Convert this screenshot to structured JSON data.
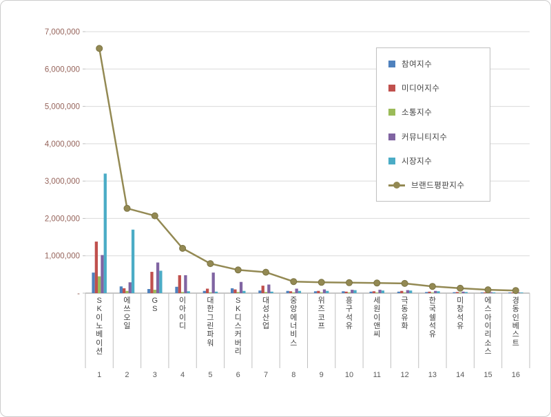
{
  "chart_data": {
    "type": "bar",
    "title": "",
    "categories": [
      "SK이노베이션",
      "에쓰오일",
      "GS",
      "이아이디",
      "대한그린파워",
      "SK디스커버리",
      "대성산업",
      "중앙에너비스",
      "위즈코프",
      "흥구석유",
      "세원이앤씨",
      "극동유화",
      "한국쉘석유",
      "미창석유",
      "에스아이리소스",
      "경동인베스트"
    ],
    "category_numbers": [
      "1",
      "2",
      "3",
      "4",
      "5",
      "6",
      "7",
      "8",
      "9",
      "10",
      "11",
      "12",
      "13",
      "14",
      "15",
      "16"
    ],
    "series": [
      {
        "name": "참여지수",
        "type": "bar",
        "color": "#4F81BD",
        "values": [
          550000,
          180000,
          110000,
          170000,
          60000,
          130000,
          70000,
          60000,
          50000,
          50000,
          40000,
          40000,
          30000,
          25000,
          15000,
          12000
        ]
      },
      {
        "name": "미디어지수",
        "type": "bar",
        "color": "#C0504D",
        "values": [
          1380000,
          130000,
          570000,
          480000,
          120000,
          100000,
          200000,
          50000,
          60000,
          40000,
          50000,
          60000,
          40000,
          30000,
          20000,
          18000
        ]
      },
      {
        "name": "소통지수",
        "type": "bar",
        "color": "#9BBB59",
        "values": [
          450000,
          60000,
          90000,
          30000,
          20000,
          30000,
          30000,
          20000,
          20000,
          20000,
          15000,
          15000,
          10000,
          8000,
          5000,
          4000
        ]
      },
      {
        "name": "커뮤니티지수",
        "type": "bar",
        "color": "#8064A2",
        "values": [
          1020000,
          290000,
          820000,
          480000,
          550000,
          300000,
          230000,
          120000,
          100000,
          90000,
          90000,
          80000,
          60000,
          40000,
          25000,
          20000
        ]
      },
      {
        "name": "시장지수",
        "type": "bar",
        "color": "#4BACC6",
        "values": [
          3200000,
          1700000,
          600000,
          50000,
          40000,
          60000,
          40000,
          60000,
          60000,
          80000,
          70000,
          70000,
          50000,
          30000,
          20000,
          16000
        ]
      },
      {
        "name": "브랜드평판지수",
        "type": "line",
        "color": "#938953",
        "values": [
          6550000,
          2270000,
          2070000,
          1200000,
          790000,
          620000,
          560000,
          310000,
          290000,
          280000,
          270000,
          260000,
          180000,
          130000,
          90000,
          70000
        ]
      }
    ],
    "ylim": [
      0,
      7000000
    ],
    "ytick_interval": 1000000,
    "ytick_labels": [
      "-",
      "1,000,000",
      "2,000,000",
      "3,000,000",
      "4,000,000",
      "5,000,000",
      "6,000,000",
      "7,000,000"
    ],
    "grid": true,
    "legend_position": "top-right",
    "colors": {
      "axis_labels": "#95635A",
      "grid": "#d9d9d9",
      "axis_line": "#8c8c8c",
      "tick": "#bfbfbf",
      "category_label": "#3f3f3f",
      "number_label": "#595959",
      "legend_border": "#bfbfbf",
      "line_marker_stroke": "#7a7342"
    }
  }
}
